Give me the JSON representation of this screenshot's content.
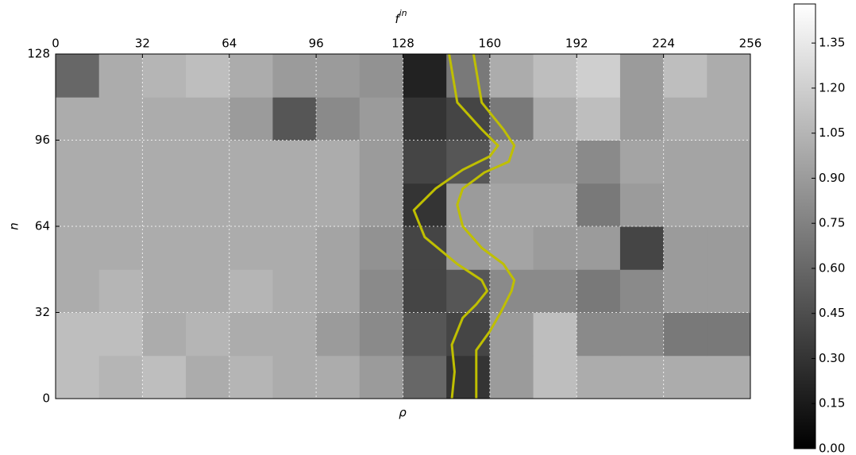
{
  "chart_data": {
    "type": "heatmap",
    "xlabel": "f",
    "xlabel_sup": "in",
    "ylabel": "n",
    "bottom_label": "ρ",
    "xlim": [
      0,
      256
    ],
    "xticks": [
      0,
      32,
      64,
      96,
      128,
      160,
      192,
      224,
      256
    ],
    "ylim": [
      0,
      128
    ],
    "yticks": [
      0,
      32,
      64,
      96,
      128
    ],
    "grid": true,
    "colormap": "gray",
    "clim": [
      0,
      1.48
    ],
    "cticks": [
      {
        "value": 0,
        "label": "0.00"
      },
      0.15,
      {
        "value": 0.3,
        "label": "0.30"
      },
      0.45,
      {
        "value": 0.6,
        "label": "0.60"
      },
      0.75,
      {
        "value": 0.9,
        "label": "0.90"
      },
      1.05,
      {
        "value": 1.2,
        "label": "1.20"
      },
      1.35
    ],
    "z": [
      [
        1.1,
        1.05,
        1.1,
        1.0,
        1.05,
        1.0,
        1.0,
        0.9,
        0.6,
        0.3,
        0.9,
        1.1,
        1.0,
        1.0,
        1.0,
        1.0
      ],
      [
        1.1,
        1.1,
        1.0,
        1.05,
        1.0,
        1.0,
        0.9,
        0.8,
        0.5,
        0.4,
        0.9,
        1.1,
        0.8,
        0.8,
        0.7,
        0.7
      ],
      [
        1.0,
        1.05,
        1.0,
        1.0,
        1.05,
        1.0,
        0.95,
        0.8,
        0.4,
        0.5,
        0.8,
        0.8,
        0.7,
        0.8,
        0.9,
        0.9
      ],
      [
        1.0,
        1.0,
        1.0,
        1.0,
        1.0,
        1.0,
        0.95,
        0.85,
        0.4,
        0.9,
        0.95,
        0.9,
        0.9,
        0.4,
        0.9,
        0.9
      ],
      [
        1.0,
        1.0,
        1.0,
        1.0,
        1.0,
        1.0,
        1.0,
        0.9,
        0.3,
        0.9,
        0.95,
        0.95,
        0.7,
        0.9,
        0.95,
        0.95
      ],
      [
        1.0,
        1.0,
        1.0,
        1.0,
        1.0,
        1.0,
        1.0,
        0.9,
        0.4,
        0.5,
        0.9,
        0.9,
        0.8,
        0.95,
        0.95,
        0.95
      ],
      [
        1.0,
        1.0,
        1.0,
        1.0,
        0.9,
        0.5,
        0.8,
        0.9,
        0.3,
        0.4,
        0.7,
        1.0,
        1.1,
        0.9,
        1.0,
        1.0
      ],
      [
        0.6,
        1.0,
        1.05,
        1.1,
        1.0,
        0.9,
        0.9,
        0.85,
        0.2,
        0.7,
        1.0,
        1.1,
        1.2,
        0.9,
        1.1,
        1.0
      ]
    ],
    "series": [
      {
        "color": "#bfbf00",
        "x": [
          146,
          147,
          146,
          150,
          155,
          159,
          157,
          148,
          136,
          132,
          140,
          150,
          160,
          163,
          157,
          148,
          145
        ],
        "y": [
          0,
          10,
          20,
          30,
          35,
          40,
          44,
          50,
          60,
          70,
          78,
          85,
          90,
          94,
          100,
          110,
          128
        ]
      },
      {
        "color": "#bfbf00",
        "x": [
          155,
          155,
          155,
          160,
          164,
          168,
          169,
          165,
          157,
          150,
          148,
          150,
          158,
          167,
          169,
          165,
          157,
          154
        ],
        "y": [
          0,
          10,
          18,
          25,
          32,
          40,
          44,
          50,
          56,
          64,
          72,
          78,
          84,
          88,
          94,
          100,
          110,
          128
        ]
      }
    ]
  }
}
